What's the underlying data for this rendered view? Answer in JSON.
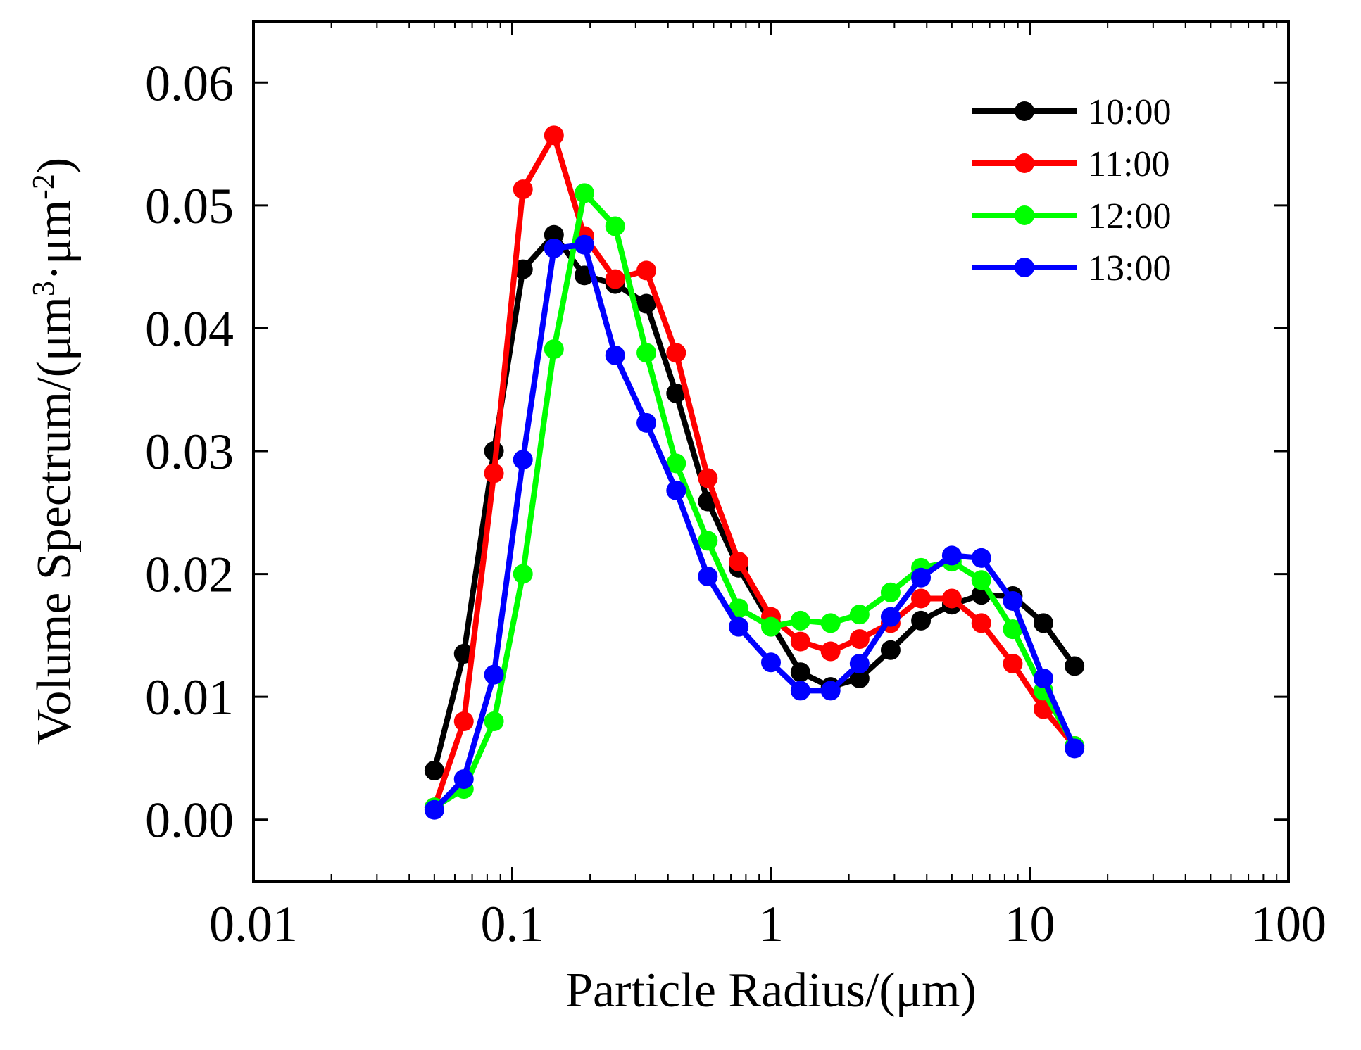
{
  "chart_data": {
    "type": "line",
    "title": "",
    "xlabel": "Particle Radius/(μm)",
    "ylabel": {
      "prefix": "Volume Spectrum/(μm",
      "sup1": "3",
      "middle": "·μm",
      "sup2": "-2",
      "suffix": ")"
    },
    "xscale": "log",
    "xlim": [
      0.01,
      100
    ],
    "ylim": [
      -0.005,
      0.065
    ],
    "xticks": [
      {
        "value": 0.01,
        "label": "0.01"
      },
      {
        "value": 0.1,
        "label": "0.1"
      },
      {
        "value": 1,
        "label": "1"
      },
      {
        "value": 10,
        "label": "10"
      },
      {
        "value": 100,
        "label": "100"
      }
    ],
    "yticks": [
      {
        "value": 0.0,
        "label": "0.00"
      },
      {
        "value": 0.01,
        "label": "0.01"
      },
      {
        "value": 0.02,
        "label": "0.02"
      },
      {
        "value": 0.03,
        "label": "0.03"
      },
      {
        "value": 0.04,
        "label": "0.04"
      },
      {
        "value": 0.05,
        "label": "0.05"
      },
      {
        "value": 0.06,
        "label": "0.06"
      }
    ],
    "legend_position": "top-right",
    "x": [
      0.05,
      0.065,
      0.085,
      0.11,
      0.145,
      0.19,
      0.25,
      0.33,
      0.43,
      0.57,
      0.75,
      1.0,
      1.3,
      1.7,
      2.2,
      2.9,
      3.8,
      5.0,
      6.5,
      8.6,
      11.3,
      14.9
    ],
    "series": [
      {
        "name": "10:00",
        "color": "#000000",
        "values": [
          0.004,
          0.0135,
          0.03,
          0.0448,
          0.0476,
          0.0443,
          0.0436,
          0.042,
          0.0347,
          0.0259,
          0.0205,
          0.016,
          0.012,
          0.0108,
          0.0115,
          0.0138,
          0.0162,
          0.0175,
          0.0183,
          0.0182,
          0.016,
          0.0125
        ]
      },
      {
        "name": "11:00",
        "color": "#ff0000",
        "values": [
          0.001,
          0.008,
          0.0282,
          0.0513,
          0.0557,
          0.0475,
          0.044,
          0.0447,
          0.038,
          0.0278,
          0.021,
          0.0165,
          0.0145,
          0.0137,
          0.0147,
          0.016,
          0.018,
          0.018,
          0.016,
          0.0127,
          0.009,
          0.006
        ]
      },
      {
        "name": "12:00",
        "color": "#00ff00",
        "values": [
          0.001,
          0.0025,
          0.008,
          0.02,
          0.0383,
          0.051,
          0.0483,
          0.038,
          0.029,
          0.0227,
          0.0172,
          0.0157,
          0.0162,
          0.016,
          0.0167,
          0.0185,
          0.0205,
          0.021,
          0.0195,
          0.0155,
          0.0105,
          0.006
        ]
      },
      {
        "name": "13:00",
        "color": "#0000ff",
        "values": [
          0.0008,
          0.0033,
          0.0118,
          0.0293,
          0.0465,
          0.0468,
          0.0378,
          0.0323,
          0.0268,
          0.0198,
          0.0157,
          0.0128,
          0.0105,
          0.0105,
          0.0127,
          0.0165,
          0.0197,
          0.0215,
          0.0213,
          0.0178,
          0.0115,
          0.0058
        ]
      }
    ]
  }
}
